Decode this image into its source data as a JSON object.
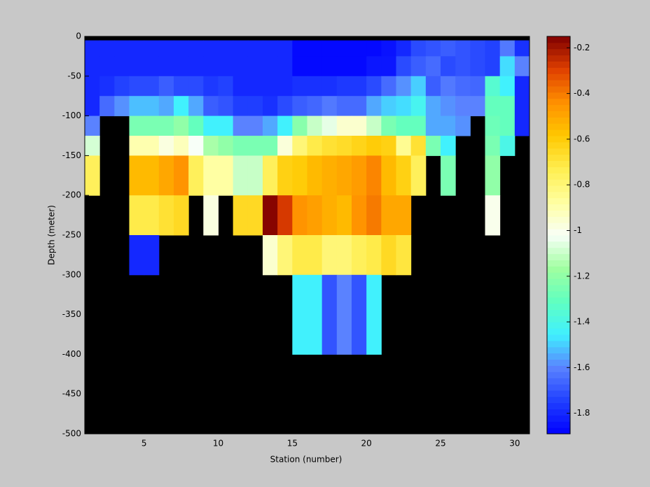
{
  "chart_data": {
    "type": "heatmap",
    "xlabel": "Station (number)",
    "ylabel": "Depth (meter)",
    "x_edges": [
      1,
      2,
      3,
      4,
      5,
      6,
      7,
      8,
      9,
      10,
      11,
      12,
      13,
      14,
      15,
      16,
      17,
      18,
      19,
      20,
      21,
      22,
      23,
      24,
      25,
      26,
      27,
      28,
      29,
      30,
      31
    ],
    "y_edges": [
      0,
      -5,
      -25,
      -50,
      -75,
      -100,
      -125,
      -150,
      -200,
      -250,
      -300,
      -400,
      -500
    ],
    "values": [
      [
        null,
        null,
        null,
        null,
        null,
        null,
        null,
        null,
        null,
        null,
        null,
        null,
        null,
        null,
        null,
        null,
        null,
        null,
        null,
        null,
        null,
        null,
        null,
        null,
        null,
        null,
        null,
        null,
        null,
        null
      ],
      [
        -1.8,
        -1.8,
        -1.8,
        -1.8,
        -1.8,
        -1.8,
        -1.8,
        -1.8,
        -1.8,
        -1.8,
        -1.8,
        -1.8,
        -1.8,
        -1.8,
        -1.87,
        -1.87,
        -1.87,
        -1.87,
        -1.87,
        -1.87,
        -1.85,
        -1.8,
        -1.72,
        -1.7,
        -1.68,
        -1.7,
        -1.72,
        -1.74,
        -1.62,
        -1.78
      ],
      [
        -1.8,
        -1.8,
        -1.8,
        -1.8,
        -1.8,
        -1.8,
        -1.8,
        -1.8,
        -1.8,
        -1.8,
        -1.8,
        -1.8,
        -1.8,
        -1.8,
        -1.87,
        -1.87,
        -1.87,
        -1.87,
        -1.87,
        -1.84,
        -1.84,
        -1.72,
        -1.68,
        -1.65,
        -1.72,
        -1.7,
        -1.72,
        -1.74,
        -1.48,
        -1.6
      ],
      [
        -1.8,
        -1.78,
        -1.74,
        -1.72,
        -1.72,
        -1.68,
        -1.72,
        -1.72,
        -1.76,
        -1.74,
        -1.8,
        -1.8,
        -1.8,
        -1.8,
        -1.78,
        -1.78,
        -1.78,
        -1.76,
        -1.76,
        -1.72,
        -1.65,
        -1.58,
        -1.5,
        -1.68,
        -1.62,
        -1.65,
        -1.66,
        -1.35,
        -1.45,
        -1.8
      ],
      [
        -1.8,
        -1.65,
        -1.58,
        -1.52,
        -1.52,
        -1.55,
        -1.45,
        -1.55,
        -1.68,
        -1.7,
        -1.75,
        -1.75,
        -1.78,
        -1.72,
        -1.68,
        -1.66,
        -1.62,
        -1.65,
        -1.65,
        -1.55,
        -1.5,
        -1.48,
        -1.42,
        -1.55,
        -1.58,
        -1.6,
        -1.6,
        -1.3,
        -1.3,
        -1.8
      ],
      [
        -1.6,
        null,
        null,
        -1.25,
        -1.25,
        -1.25,
        -1.2,
        -1.3,
        -1.45,
        -1.45,
        -1.6,
        -1.6,
        -1.55,
        -1.45,
        -1.22,
        -1.1,
        -1.05,
        -0.95,
        -0.95,
        -1.1,
        -1.25,
        -1.3,
        -1.3,
        -1.55,
        -1.55,
        -1.58,
        null,
        -1.28,
        -1.3,
        -1.8
      ],
      [
        -1.08,
        null,
        null,
        -0.9,
        -0.9,
        -0.98,
        -0.92,
        -1.02,
        -1.15,
        -1.2,
        -1.25,
        -1.25,
        -1.25,
        -0.97,
        -0.8,
        -0.72,
        -0.68,
        -0.66,
        -0.63,
        -0.6,
        -0.62,
        -0.85,
        -0.68,
        -1.25,
        -1.45,
        null,
        null,
        -1.25,
        -1.4,
        null
      ],
      [
        -0.75,
        null,
        null,
        -0.55,
        -0.55,
        -0.5,
        -0.45,
        -0.75,
        -0.88,
        -0.88,
        -1.1,
        -1.1,
        -0.75,
        -0.62,
        -0.6,
        -0.55,
        -0.52,
        -0.5,
        -0.47,
        -0.42,
        -0.55,
        -0.62,
        -0.75,
        null,
        -1.25,
        null,
        null,
        -1.2,
        null,
        null
      ],
      [
        null,
        null,
        null,
        -0.72,
        -0.72,
        -0.68,
        -0.65,
        null,
        -0.98,
        null,
        -0.65,
        -0.65,
        -0.16,
        -0.28,
        -0.45,
        -0.48,
        -0.52,
        -0.55,
        -0.45,
        -0.4,
        -0.5,
        -0.5,
        null,
        null,
        null,
        null,
        null,
        -1.0,
        null,
        null
      ],
      [
        null,
        null,
        null,
        -1.8,
        -1.8,
        null,
        null,
        null,
        null,
        null,
        null,
        null,
        -0.95,
        -0.8,
        -0.72,
        -0.72,
        -0.8,
        -0.8,
        -0.75,
        -0.72,
        -0.65,
        -0.7,
        null,
        null,
        null,
        null,
        null,
        null,
        null,
        null
      ],
      [
        null,
        null,
        null,
        null,
        null,
        null,
        null,
        null,
        null,
        null,
        null,
        null,
        null,
        null,
        -1.45,
        -1.45,
        -1.7,
        -1.6,
        -1.7,
        -1.45,
        null,
        null,
        null,
        null,
        null,
        null,
        null,
        null,
        null,
        null
      ],
      [
        null,
        null,
        null,
        null,
        null,
        null,
        null,
        null,
        null,
        null,
        null,
        null,
        null,
        null,
        null,
        null,
        null,
        null,
        null,
        null,
        null,
        null,
        null,
        null,
        null,
        null,
        null,
        null,
        null,
        null
      ]
    ],
    "xlim": [
      1,
      31
    ],
    "ylim": [
      -500,
      0
    ],
    "xticks": [
      5,
      10,
      15,
      20,
      25,
      30
    ],
    "yticks": [
      0,
      -50,
      -100,
      -150,
      -200,
      -250,
      -300,
      -350,
      -400,
      -450,
      -500
    ],
    "clim": [
      -1.89,
      -0.15
    ],
    "cticks": [
      -0.2,
      -0.4,
      -0.6,
      -0.8,
      -1,
      -1.2,
      -1.4,
      -1.6,
      -1.8
    ],
    "colormap": [
      "#0000ff",
      "#2040ff",
      "#5a82ff",
      "#40f0ff",
      "#60ffc0",
      "#a0ffa0",
      "#f8fff8",
      "#ffffa0",
      "#ffee50",
      "#ffc800",
      "#ff9000",
      "#e04000",
      "#800000"
    ],
    "missing_color": "#000000"
  }
}
